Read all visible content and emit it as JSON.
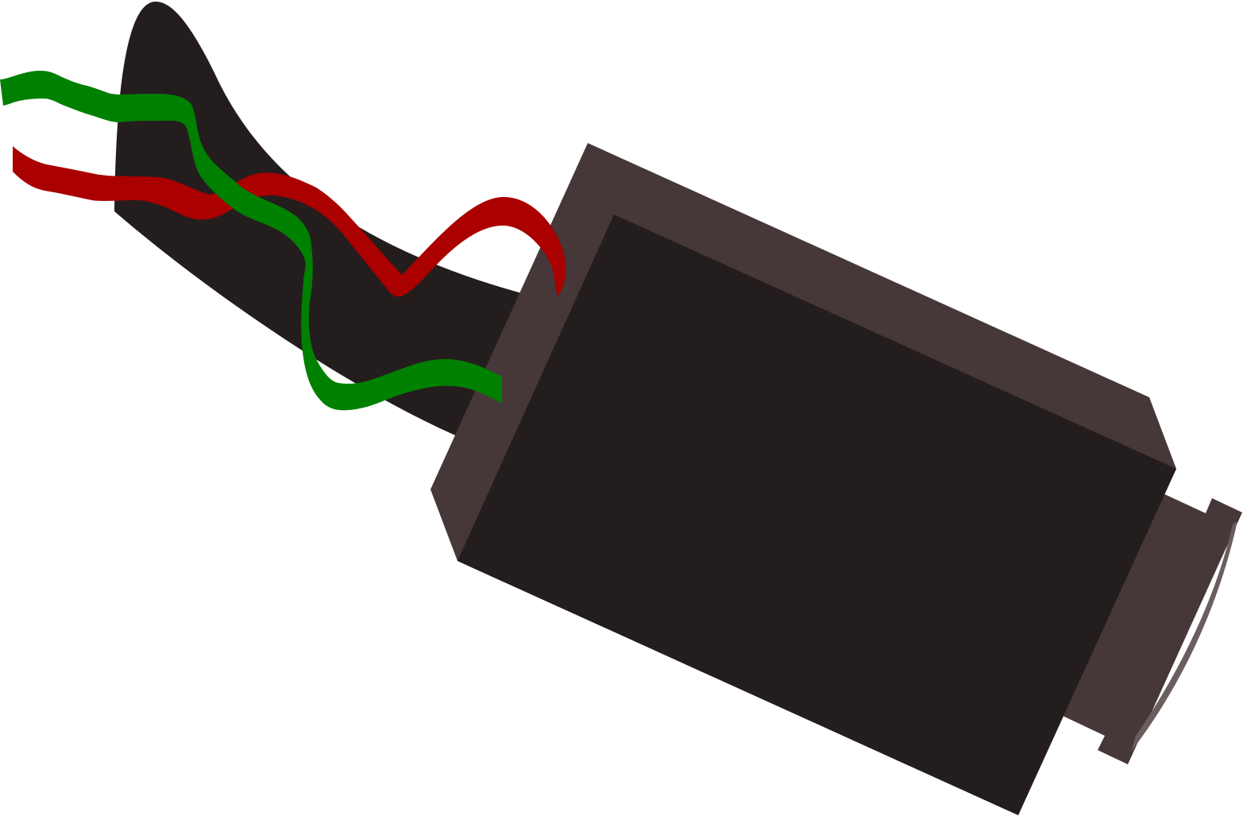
{
  "illustration": {
    "subject": "connector-with-wires",
    "colors": {
      "background": "#ffffff",
      "cable": "#241d1e",
      "housing_frame": "#463738",
      "housing_face": "#241d1e",
      "end_cap": "#463738",
      "end_cap_highlight": "#6a5e5f",
      "wire_green": "#008000",
      "wire_red": "#aa0000"
    }
  }
}
